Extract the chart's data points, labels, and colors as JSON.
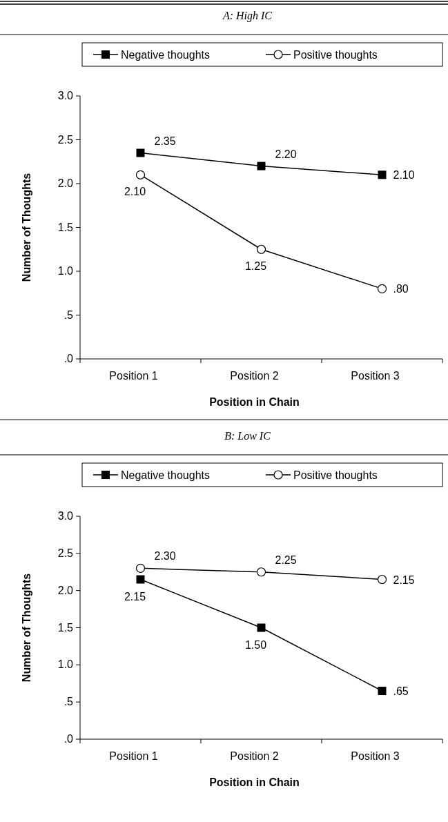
{
  "chart_data": [
    {
      "type": "line",
      "title": "A: High IC",
      "ylabel": "Number of Thoughts",
      "xlabel": "Position in Chain",
      "categories": [
        "Position 1",
        "Position 2",
        "Position 3"
      ],
      "ylim": [
        0,
        3
      ],
      "yticks": [
        {
          "value": 0,
          "label": ".0"
        },
        {
          "value": 0.5,
          "label": ".5"
        },
        {
          "value": 1,
          "label": "1.0"
        },
        {
          "value": 1.5,
          "label": "1.5"
        },
        {
          "value": 2,
          "label": "2.0"
        },
        {
          "value": 2.5,
          "label": "2.5"
        },
        {
          "value": 3,
          "label": "3.0"
        }
      ],
      "legend": "top",
      "grid": false,
      "line_style": "solid",
      "series": [
        {
          "name": "Negative thoughts",
          "color": "#000000",
          "marker": "square",
          "values": [
            2.35,
            2.2,
            2.1
          ],
          "value_labels": [
            "2.35",
            "2.20",
            "2.10"
          ]
        },
        {
          "name": "Positive thoughts",
          "color": "#000000",
          "marker": "circle",
          "values": [
            2.1,
            1.25,
            0.8
          ],
          "value_labels": [
            "2.10",
            "1.25",
            ".80"
          ]
        }
      ]
    },
    {
      "type": "line",
      "title": "B: Low IC",
      "ylabel": "Number of Thoughts",
      "xlabel": "Position in Chain",
      "categories": [
        "Position 1",
        "Position 2",
        "Position 3"
      ],
      "ylim": [
        0,
        3
      ],
      "yticks": [
        {
          "value": 0,
          "label": ".0"
        },
        {
          "value": 0.5,
          "label": ".5"
        },
        {
          "value": 1,
          "label": "1.0"
        },
        {
          "value": 1.5,
          "label": "1.5"
        },
        {
          "value": 2,
          "label": "2.0"
        },
        {
          "value": 2.5,
          "label": "2.5"
        },
        {
          "value": 3,
          "label": "3.0"
        }
      ],
      "legend": "top",
      "grid": false,
      "line_style": "solid",
      "series": [
        {
          "name": "Negative thoughts",
          "color": "#000000",
          "marker": "square",
          "values": [
            2.15,
            1.5,
            0.65
          ],
          "value_labels": [
            "2.15",
            "1.50",
            ".65"
          ]
        },
        {
          "name": "Positive thoughts",
          "color": "#000000",
          "marker": "circle",
          "values": [
            2.3,
            2.25,
            2.15
          ],
          "value_labels": [
            "2.30",
            "2.25",
            "2.15"
          ]
        }
      ]
    }
  ]
}
